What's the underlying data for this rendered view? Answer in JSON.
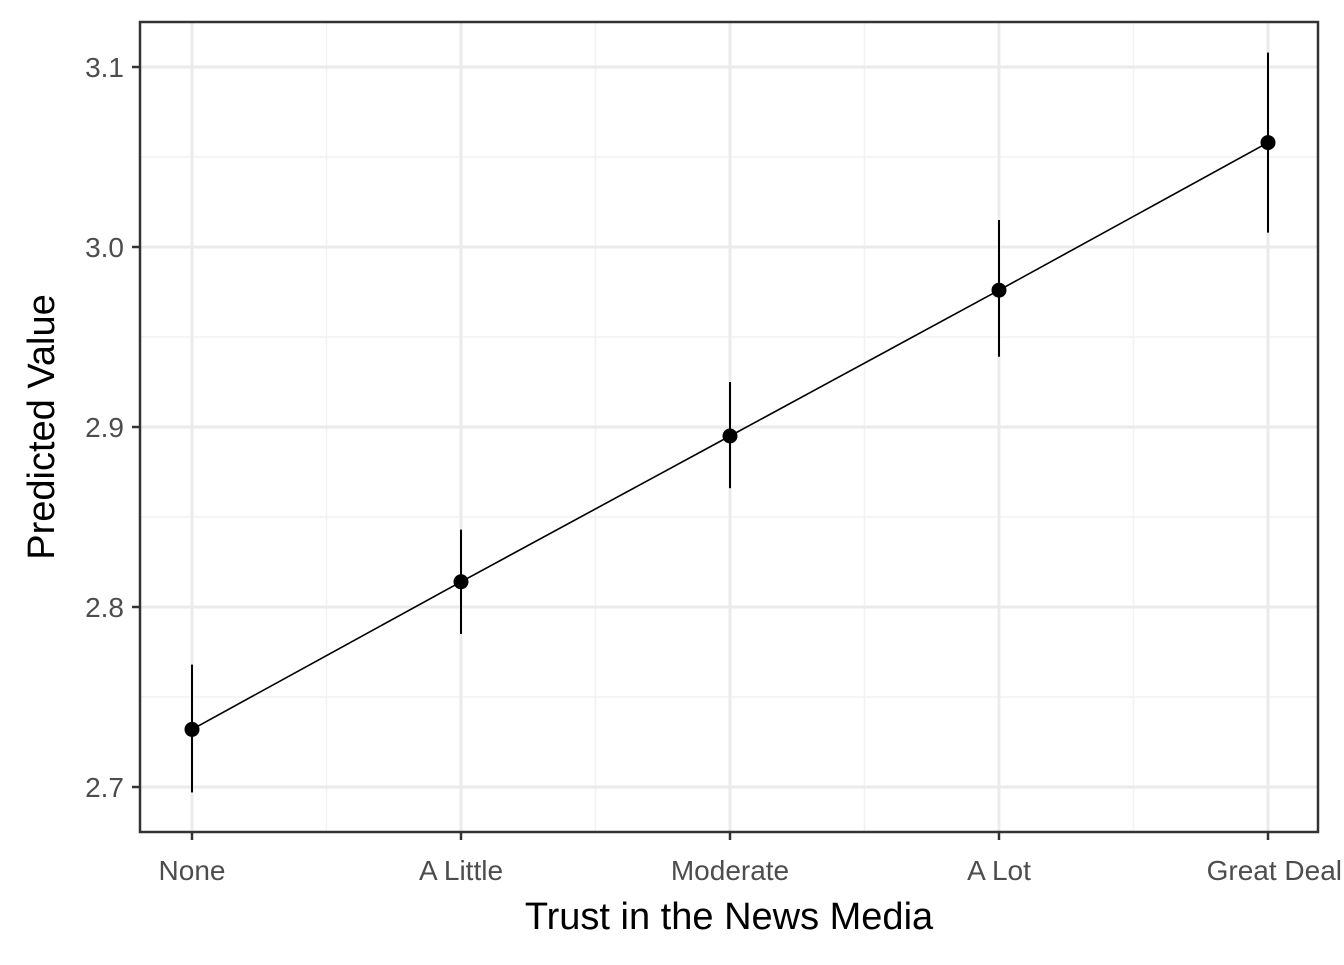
{
  "chart_data": {
    "type": "line",
    "xlabel": "Trust in the News Media",
    "ylabel": "Predicted Value",
    "categories": [
      "None",
      "A Little",
      "Moderate",
      "A Lot",
      "Great Deal"
    ],
    "series": [
      {
        "values": [
          2.732,
          2.814,
          2.895,
          2.976,
          3.058
        ],
        "lower": [
          2.697,
          2.785,
          2.866,
          2.939,
          3.008
        ],
        "upper": [
          2.768,
          2.843,
          2.925,
          3.015,
          3.108
        ]
      }
    ],
    "ylim": [
      2.675,
      3.125
    ],
    "yticks": [
      2.7,
      2.8,
      2.9,
      3.0,
      3.1
    ],
    "ytick_labels": [
      "2.7",
      "2.8",
      "2.9",
      "3.0",
      "3.1"
    ],
    "grid": true,
    "error_bars": true,
    "colors": {
      "line": "#000000",
      "point": "#000000",
      "grid_major": "#ebebeb",
      "grid_minor": "#f2f2f2",
      "panel_border": "#333333"
    }
  }
}
